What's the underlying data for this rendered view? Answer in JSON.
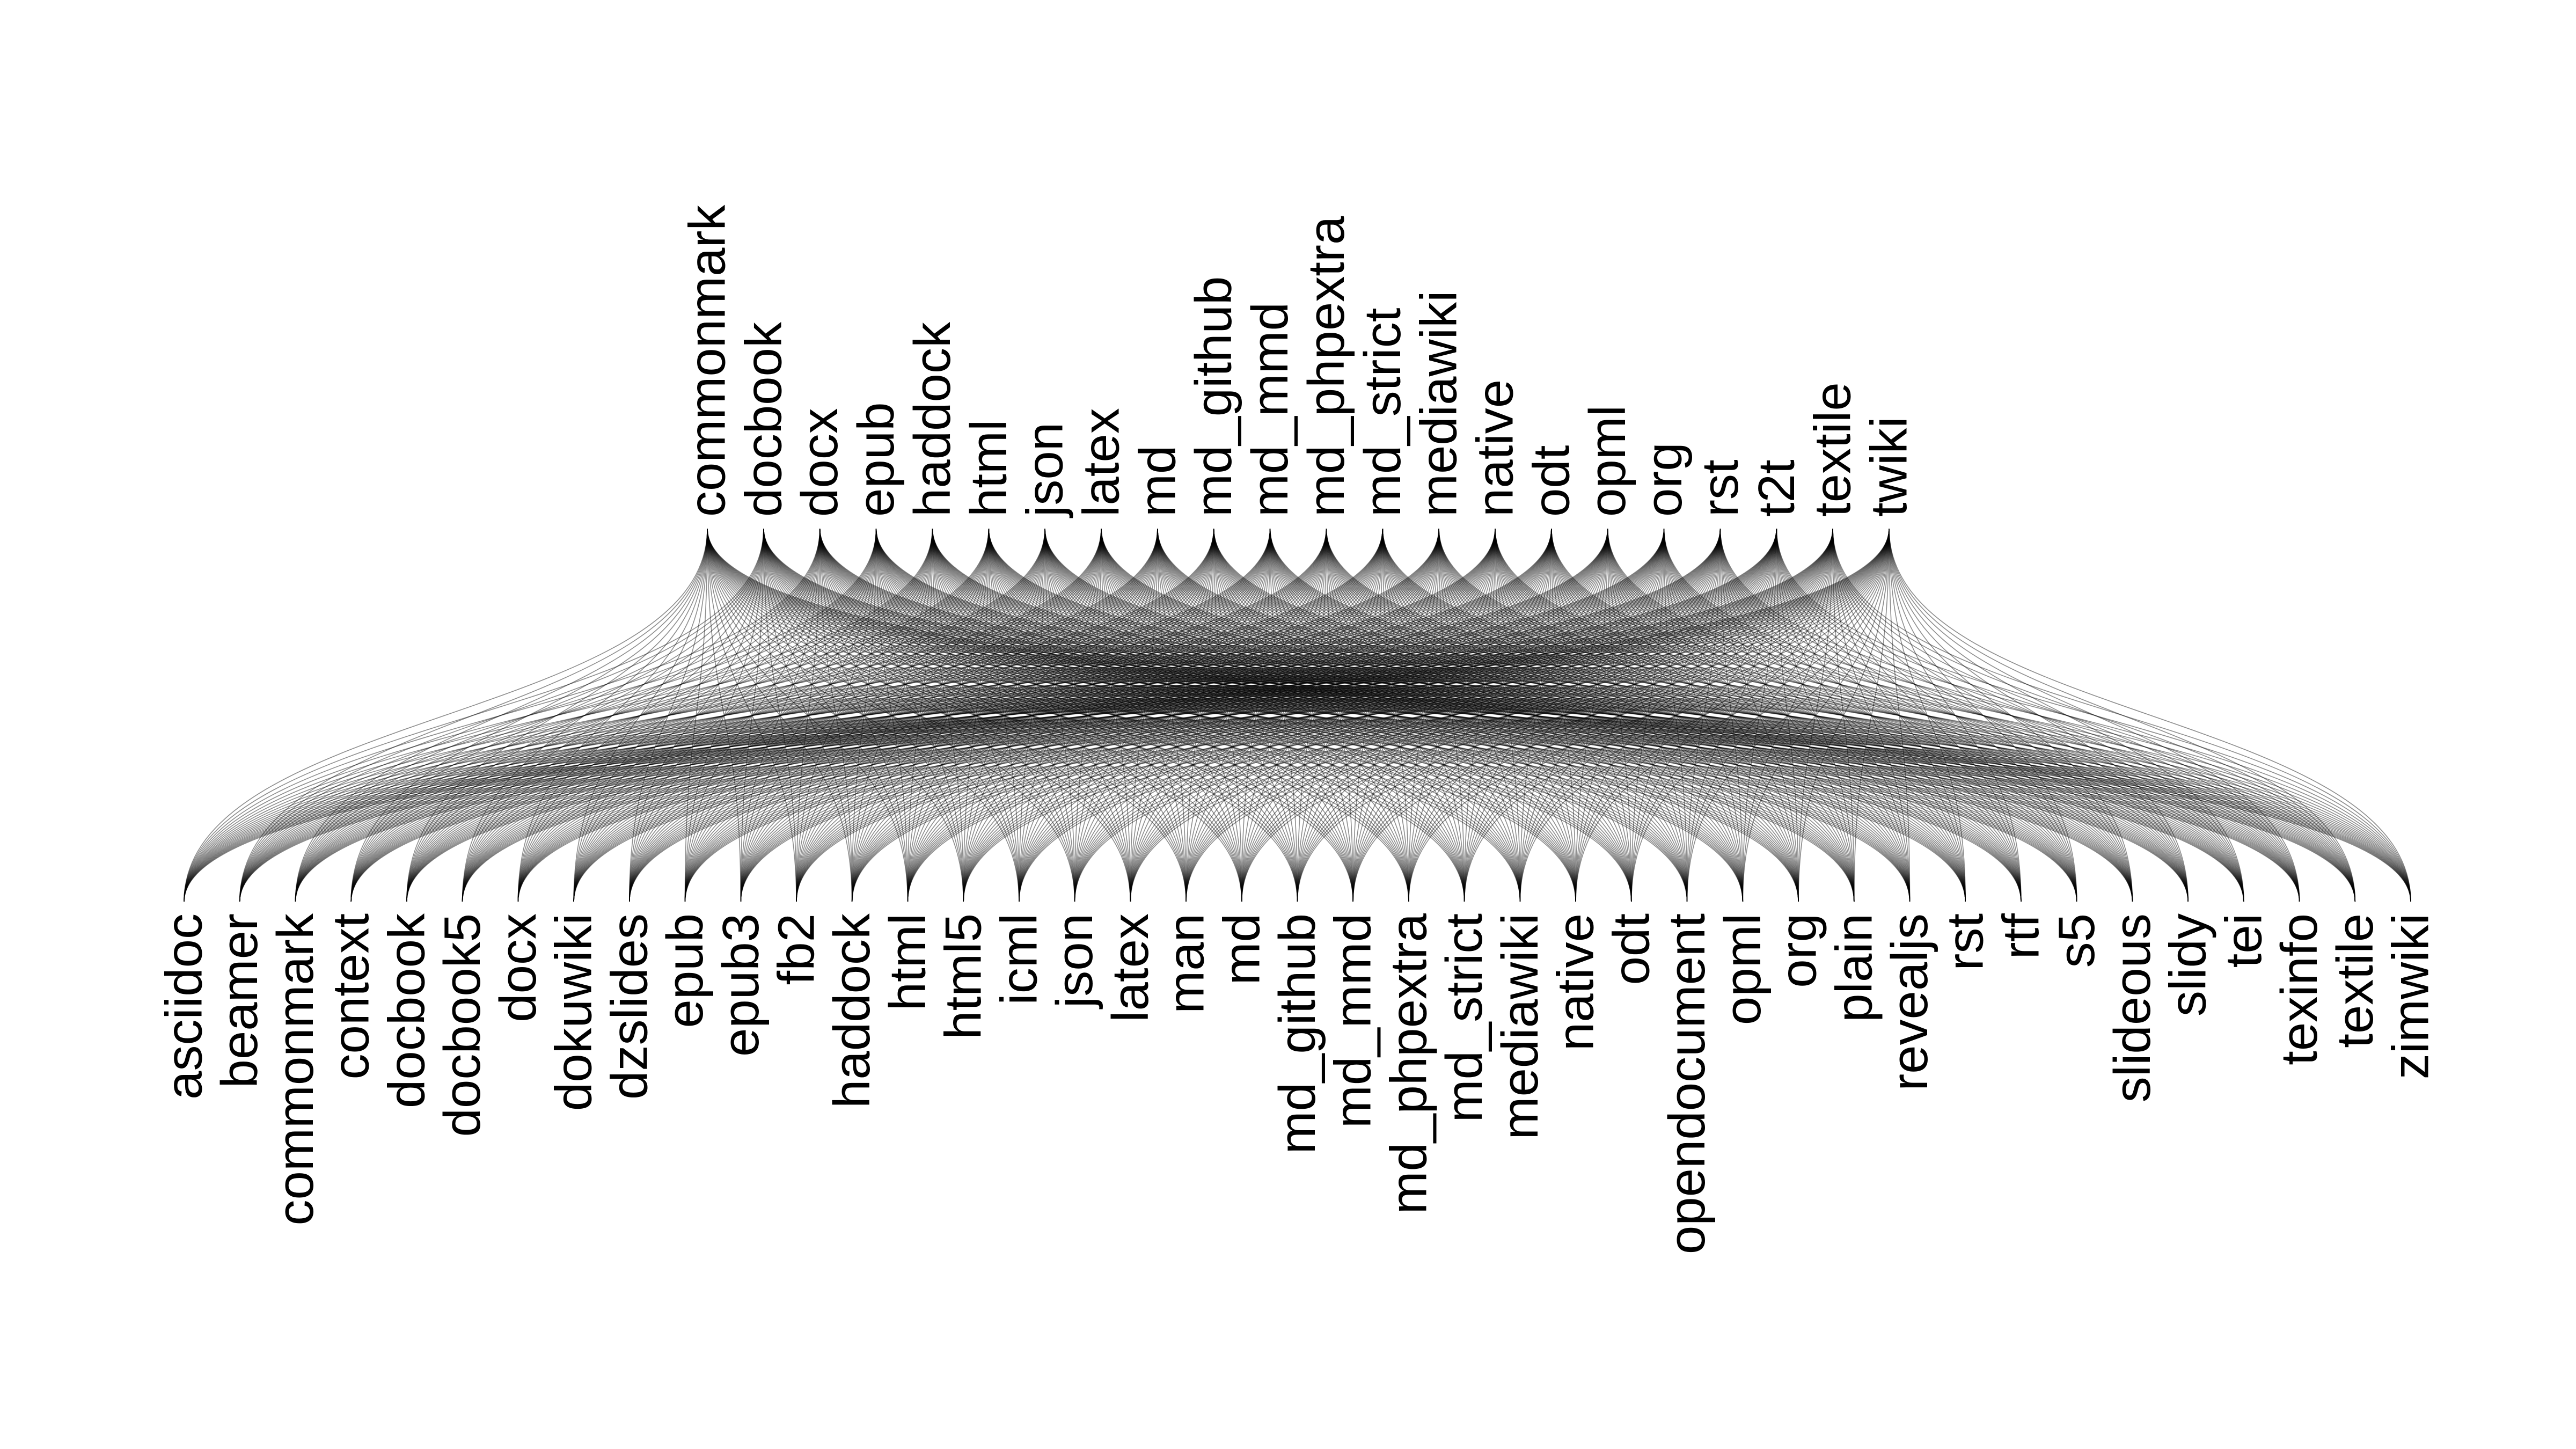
{
  "diagram": {
    "edge_color": "#000000",
    "background_color": "#ffffff",
    "top_nodes": [
      "commonmark",
      "docbook",
      "docx",
      "epub",
      "haddock",
      "html",
      "json",
      "latex",
      "md",
      "md_github",
      "md_mmd",
      "md_phpextra",
      "md_strict",
      "mediawiki",
      "native",
      "odt",
      "opml",
      "org",
      "rst",
      "t2t",
      "textile",
      "twiki"
    ],
    "bottom_nodes": [
      "asciidoc",
      "beamer",
      "commonmark",
      "context",
      "docbook",
      "docbook5",
      "docx",
      "dokuwiki",
      "dzslides",
      "epub",
      "epub3",
      "fb2",
      "haddock",
      "html",
      "html5",
      "icml",
      "json",
      "latex",
      "man",
      "md",
      "md_github",
      "md_mmd",
      "md_phpextra",
      "md_strict",
      "mediawiki",
      "native",
      "odt",
      "opendocument",
      "opml",
      "org",
      "plain",
      "revealjs",
      "rst",
      "rtf",
      "s5",
      "slideous",
      "slidy",
      "tei",
      "texinfo",
      "textile",
      "zimwiki"
    ],
    "connectivity": "complete bipartite (every top node connected to every bottom node)"
  }
}
